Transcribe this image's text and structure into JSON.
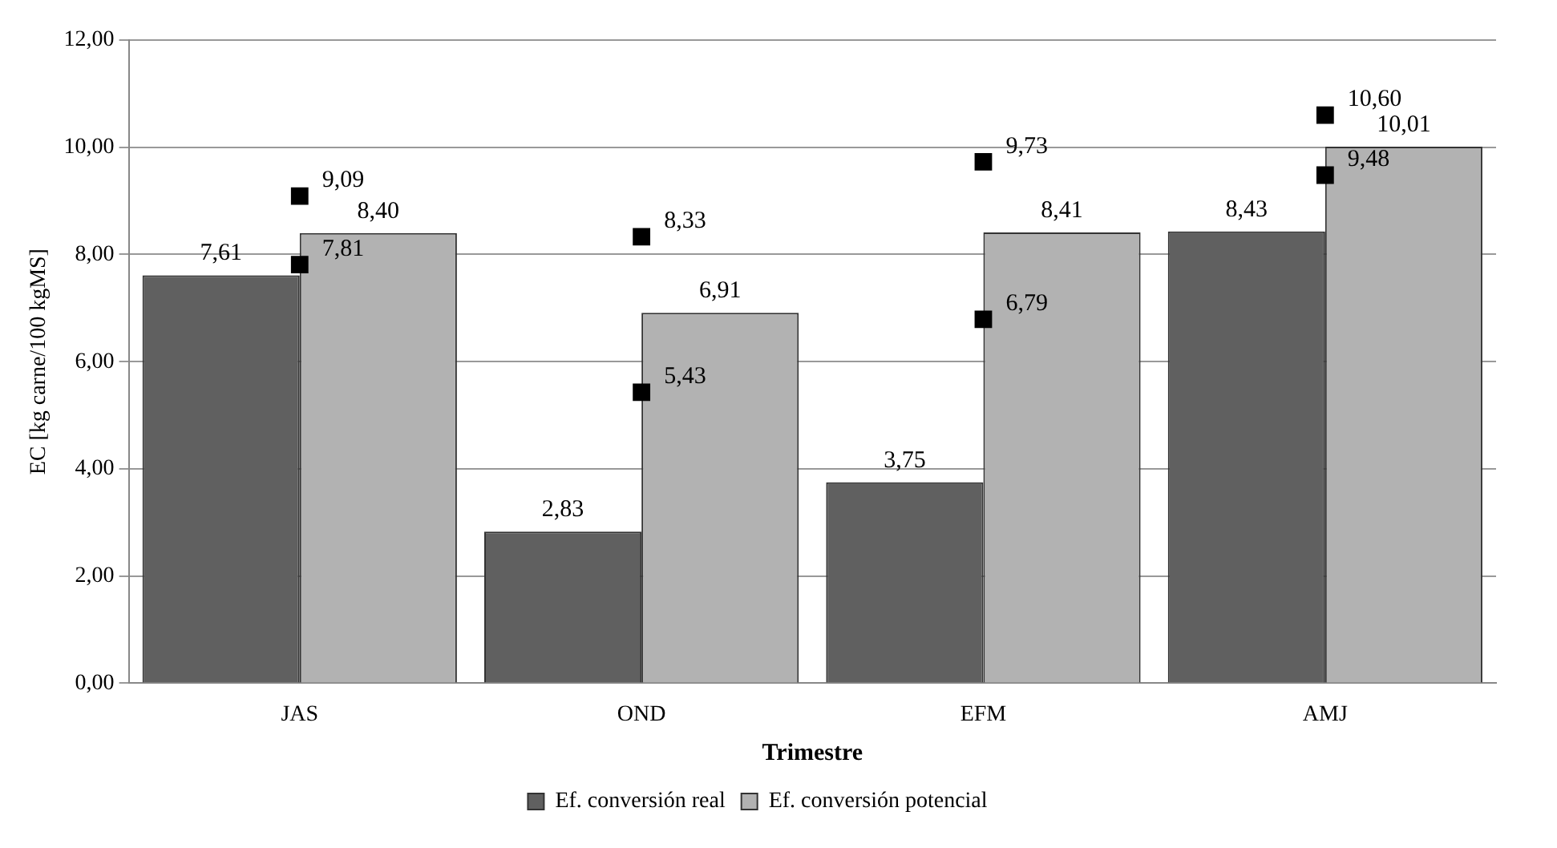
{
  "chart_data": {
    "type": "bar",
    "xlabel": "Trimestre",
    "ylabel": "EC [kg carne/100 kgMS]",
    "categories": [
      "JAS",
      "OND",
      "EFM",
      "AMJ"
    ],
    "series": [
      {
        "name": "Ef. conversión real",
        "color": "#606060",
        "values": [
          7.61,
          2.83,
          3.75,
          8.43
        ],
        "value_labels": [
          "7,61",
          "2,83",
          "3,75",
          "8,43"
        ]
      },
      {
        "name": "Ef. conversión potencial",
        "color": "#b2b2b2",
        "values": [
          8.4,
          6.91,
          8.41,
          10.01
        ],
        "value_labels": [
          "8,40",
          "6,91",
          "8,41",
          "10,01"
        ]
      },
      {
        "type": "scatter",
        "marker": "square",
        "color": "#000000",
        "x": [
          "JAS",
          "OND",
          "EFM",
          "AMJ"
        ],
        "values": [
          9.09,
          8.33,
          9.73,
          10.6
        ],
        "value_labels": [
          "9,09",
          "8,33",
          "9,73",
          "10,60"
        ]
      },
      {
        "type": "scatter",
        "marker": "square",
        "color": "#000000",
        "x": [
          "JAS",
          "OND",
          "EFM",
          "AMJ"
        ],
        "values": [
          7.81,
          5.43,
          6.79,
          9.48
        ],
        "value_labels": [
          "7,81",
          "5,43",
          "6,79",
          "9,48"
        ]
      }
    ],
    "ylim": [
      0,
      12
    ],
    "yticks": [
      {
        "value": 0,
        "label": "0,00"
      },
      {
        "value": 2,
        "label": "2,00"
      },
      {
        "value": 4,
        "label": "4,00"
      },
      {
        "value": 6,
        "label": "6,00"
      },
      {
        "value": 8,
        "label": "8,00"
      },
      {
        "value": 10,
        "label": "10,00"
      },
      {
        "value": 12,
        "label": "12,00"
      }
    ],
    "grid": "y",
    "legend": "bottom"
  }
}
